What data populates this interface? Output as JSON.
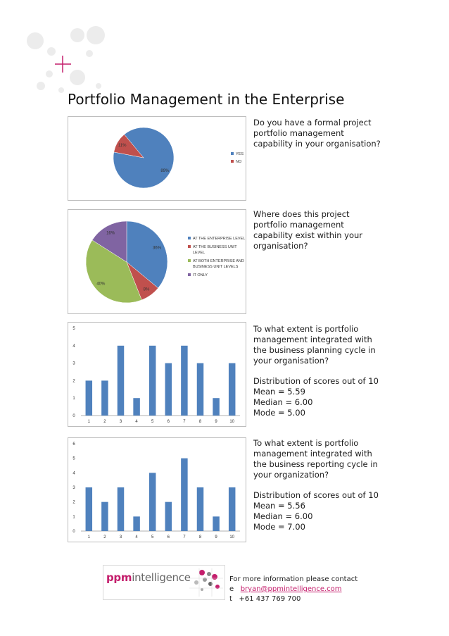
{
  "page": {
    "title": "Portfolio Management in the Enterprise"
  },
  "questions": [
    {
      "lines": [
        "Do you have a formal project",
        "portfolio management",
        "capability in your organisation?"
      ]
    },
    {
      "lines": [
        "Where does this project",
        "portfolio management",
        "capability exist within your",
        "organisation?"
      ]
    },
    {
      "lines": [
        "To what extent is portfolio",
        "management integrated with",
        "the business planning cycle in",
        "your organisation?"
      ],
      "stats": [
        "Distribution of scores out of 10",
        "Mean = 5.59",
        "Median = 6.00",
        "Mode = 5.00"
      ]
    },
    {
      "lines": [
        "To what extent is portfolio",
        "management integrated with",
        "the business reporting cycle in",
        "your organization?"
      ],
      "stats": [
        "Distribution of scores out of 10",
        "Mean = 5.56",
        "Median = 6.00",
        "Mode = 7.00"
      ]
    }
  ],
  "footer": {
    "info": "For more information please contact",
    "email_prefix": "e",
    "email": "bryan@ppmintelligence.com",
    "phone_prefix": "t",
    "phone": "+61 437 769 700",
    "logo_ppm": "ppm",
    "logo_intelligence": "intelligence"
  },
  "colors": {
    "blue": "#4f81bd",
    "red": "#c0504d",
    "green": "#9bbb59",
    "purple": "#8064a2",
    "accent": "#c41e6c"
  },
  "chart_data": [
    {
      "type": "pie",
      "labels": [
        "YES",
        "NO"
      ],
      "values": [
        89,
        11
      ],
      "data_labels": [
        "89%",
        "11%"
      ],
      "colors": [
        "#4f81bd",
        "#c0504d"
      ],
      "legend": "right"
    },
    {
      "type": "pie",
      "labels": [
        "AT THE ENTERPRISE LEVEL",
        "AT THE BUSINESS UNIT LEVEL",
        "AT BOTH ENTERPRISE AND BUSINESS UNIT LEVELS",
        "IT ONLY"
      ],
      "values": [
        36,
        8,
        40,
        16
      ],
      "data_labels": [
        "36%",
        "8%",
        "40%",
        "16%"
      ],
      "colors": [
        "#4f81bd",
        "#c0504d",
        "#9bbb59",
        "#8064a2"
      ],
      "legend": "right"
    },
    {
      "type": "bar",
      "categories": [
        "1",
        "2",
        "3",
        "4",
        "5",
        "6",
        "7",
        "8",
        "9",
        "10"
      ],
      "values": [
        2,
        2,
        4,
        1,
        4,
        3,
        4,
        3,
        1,
        3
      ],
      "ylim": [
        0,
        5
      ],
      "yticks": [
        "0",
        "1",
        "2",
        "3",
        "4",
        "5"
      ],
      "grid": false,
      "color": "#4f81bd"
    },
    {
      "type": "bar",
      "categories": [
        "1",
        "2",
        "3",
        "4",
        "5",
        "6",
        "7",
        "8",
        "9",
        "10"
      ],
      "values": [
        3,
        2,
        3,
        1,
        4,
        2,
        5,
        3,
        1,
        3
      ],
      "ylim": [
        0,
        6
      ],
      "yticks": [
        "0",
        "1",
        "2",
        "3",
        "4",
        "5",
        "6"
      ],
      "grid": false,
      "color": "#4f81bd"
    }
  ]
}
